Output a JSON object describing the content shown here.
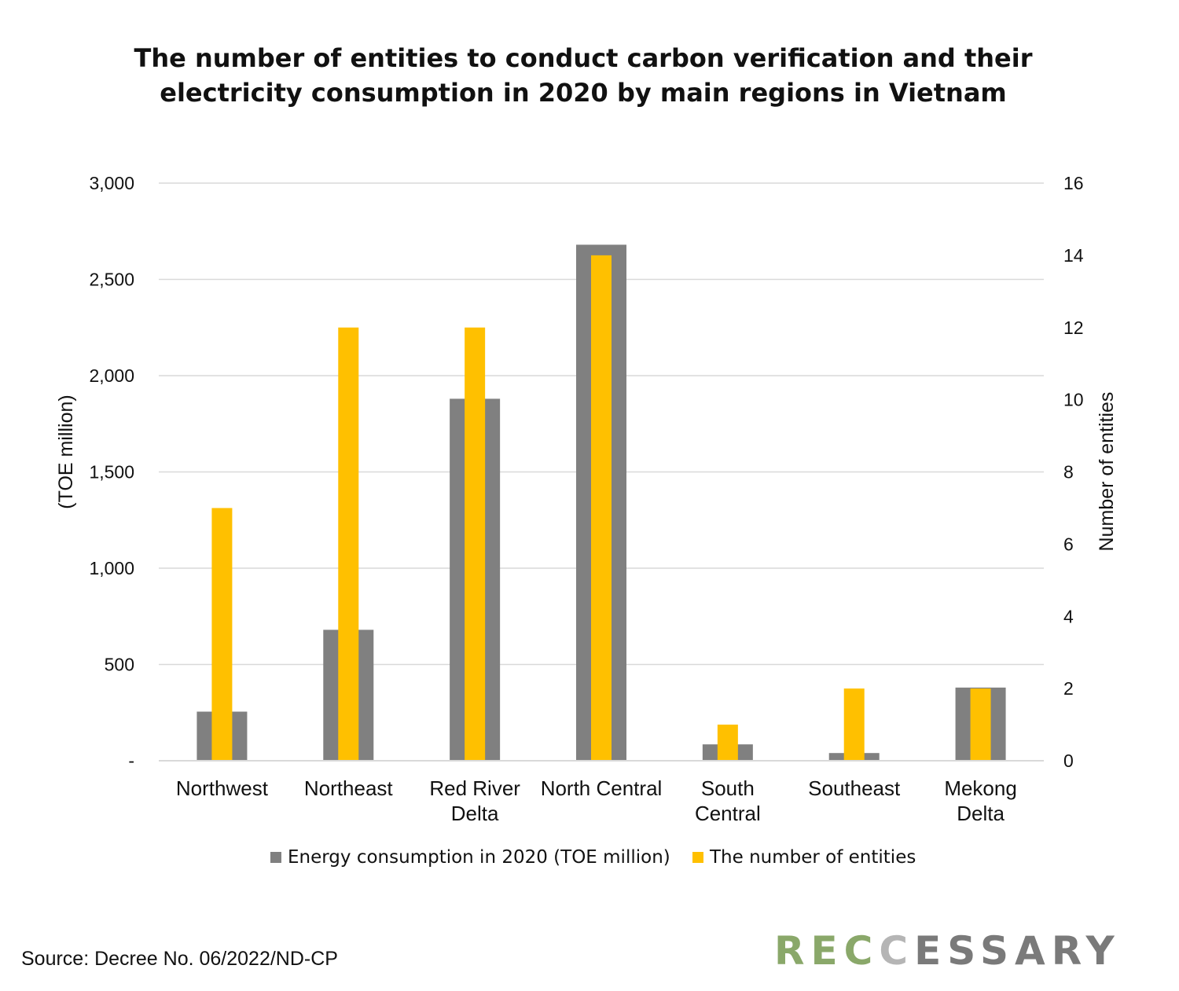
{
  "title_lines": [
    "The number of entities to conduct carbon verification and their",
    "electricity consumption in 2020 by main regions in Vietnam"
  ],
  "source": "Source: Decree No. 06/2022/ND-CP",
  "logo": {
    "text": "RECCESSARY",
    "colors": [
      "#8aa86a",
      "#8aa86a",
      "#8aa86a",
      "#b5b5b5",
      "#7a7a7a",
      "#7a7a7a",
      "#7a7a7a",
      "#7a7a7a",
      "#7a7a7a",
      "#7a7a7a"
    ]
  },
  "colors": {
    "energy": "#808080",
    "entities": "#ffc000",
    "grid": "#d9d9d9",
    "axis": "#d9d9d9"
  },
  "chart_data": {
    "type": "bar",
    "title": "The number of entities to conduct carbon verification and their electricity consumption in 2020 by main regions in Vietnam",
    "categories": [
      [
        "Northwest"
      ],
      [
        "Northeast"
      ],
      [
        "Red River",
        "Delta"
      ],
      [
        "North Central"
      ],
      [
        "South",
        "Central"
      ],
      [
        "Southeast"
      ],
      [
        "Mekong",
        "Delta"
      ]
    ],
    "series": [
      {
        "name": "Energy consumption in 2020 (TOE million)",
        "axis": "left",
        "color": "#808080",
        "values": [
          255,
          680,
          1880,
          2680,
          85,
          40,
          380
        ]
      },
      {
        "name": "The number of entities",
        "axis": "right",
        "color": "#ffc000",
        "values": [
          7,
          12,
          12,
          14,
          1,
          2,
          2
        ]
      }
    ],
    "y_left": {
      "label": "(TOE million)",
      "range": [
        0,
        3000
      ],
      "ticks": [
        0,
        500,
        1000,
        1500,
        2000,
        2500,
        3000
      ],
      "tick_labels": [
        "-",
        "500",
        "1,000",
        "1,500",
        "2,000",
        "2,500",
        "3,000"
      ]
    },
    "y_right": {
      "label": "Number of entities",
      "range": [
        0,
        16
      ],
      "ticks": [
        0,
        2,
        4,
        6,
        8,
        10,
        12,
        14,
        16
      ],
      "tick_labels": [
        "0",
        "2",
        "4",
        "6",
        "8",
        "10",
        "12",
        "14",
        "16"
      ]
    },
    "grid": true,
    "legend": "bottom"
  }
}
